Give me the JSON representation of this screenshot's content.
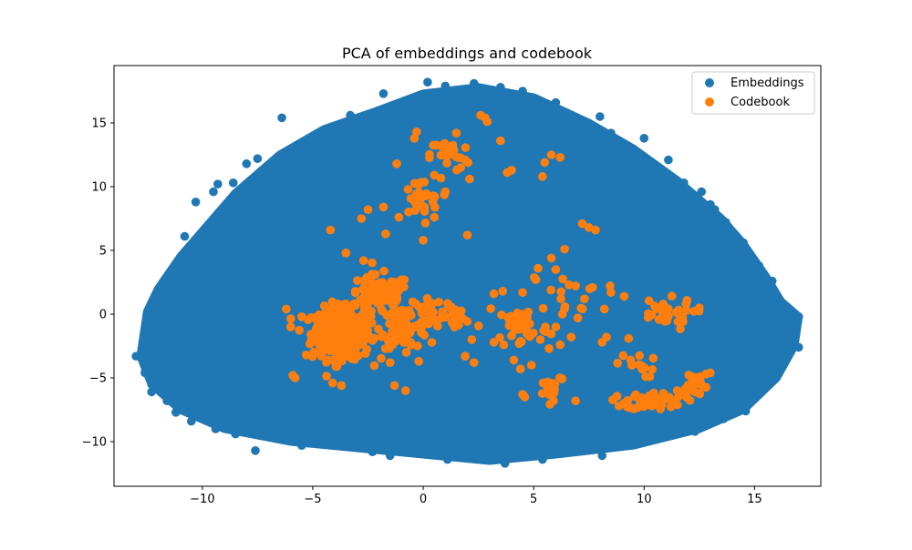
{
  "chart_data": {
    "type": "scatter",
    "title": "PCA of embeddings and codebook",
    "xlabel": "",
    "ylabel": "",
    "xlim": [
      -14,
      18
    ],
    "ylim": [
      -13.5,
      19.5
    ],
    "xticks": [
      -10,
      -5,
      0,
      5,
      10,
      15
    ],
    "yticks": [
      -10,
      -5,
      0,
      5,
      10,
      15
    ],
    "xtick_labels": [
      "−10",
      "−5",
      "0",
      "5",
      "10",
      "15"
    ],
    "ytick_labels": [
      "−10",
      "−5",
      "0",
      "5",
      "10",
      "15"
    ],
    "grid": false,
    "legend_position": "top-right",
    "series": [
      {
        "name": "Embeddings",
        "color": "#1f77b4",
        "cloud_outline": [
          [
            -12.8,
            -3.3
          ],
          [
            -12.5,
            0.2
          ],
          [
            -12.0,
            2.0
          ],
          [
            -11.0,
            4.5
          ],
          [
            -10.0,
            6.5
          ],
          [
            -8.5,
            9.5
          ],
          [
            -6.5,
            12.5
          ],
          [
            -4.5,
            14.5
          ],
          [
            -2.0,
            16.0
          ],
          [
            0.0,
            17.3
          ],
          [
            2.5,
            17.8
          ],
          [
            5.0,
            17.0
          ],
          [
            7.5,
            15.0
          ],
          [
            9.5,
            13.0
          ],
          [
            11.5,
            10.5
          ],
          [
            13.5,
            7.5
          ],
          [
            14.5,
            5.5
          ],
          [
            15.5,
            3.0
          ],
          [
            16.2,
            1.0
          ],
          [
            17.0,
            -0.2
          ],
          [
            16.8,
            -2.5
          ],
          [
            16.0,
            -5.0
          ],
          [
            14.5,
            -7.5
          ],
          [
            12.5,
            -9.0
          ],
          [
            9.5,
            -10.3
          ],
          [
            6.0,
            -11.0
          ],
          [
            3.0,
            -11.5
          ],
          [
            0.0,
            -11.0
          ],
          [
            -3.0,
            -10.5
          ],
          [
            -6.0,
            -10.0
          ],
          [
            -9.0,
            -9.0
          ],
          [
            -11.0,
            -7.5
          ],
          [
            -12.3,
            -5.5
          ]
        ],
        "outliers": [
          [
            -13.0,
            -3.3
          ],
          [
            -12.6,
            -4.6
          ],
          [
            -12.3,
            -5.5
          ],
          [
            -12.2,
            0.4
          ],
          [
            -12.4,
            0.2
          ],
          [
            -11.6,
            2.4
          ],
          [
            -11.3,
            3.1
          ],
          [
            -11.0,
            4.0
          ],
          [
            -10.8,
            6.1
          ],
          [
            -10.3,
            8.8
          ],
          [
            -9.5,
            9.6
          ],
          [
            -8.6,
            10.3
          ],
          [
            -9.3,
            10.2
          ],
          [
            -8.0,
            11.8
          ],
          [
            -7.5,
            12.2
          ],
          [
            -6.4,
            15.4
          ],
          [
            -5.5,
            13.3
          ],
          [
            -3.3,
            15.6
          ],
          [
            -1.8,
            17.3
          ],
          [
            0.2,
            18.2
          ],
          [
            1.0,
            17.9
          ],
          [
            2.3,
            18.1
          ],
          [
            3.5,
            17.8
          ],
          [
            4.5,
            17.5
          ],
          [
            6.0,
            16.6
          ],
          [
            8.0,
            15.5
          ],
          [
            8.5,
            14.2
          ],
          [
            10.0,
            13.8
          ],
          [
            11.1,
            12.1
          ],
          [
            11.8,
            10.3
          ],
          [
            12.6,
            9.6
          ],
          [
            13.0,
            8.6
          ],
          [
            13.2,
            8.2
          ],
          [
            13.7,
            7.2
          ],
          [
            14.5,
            5.6
          ],
          [
            14.1,
            5.3
          ],
          [
            15.2,
            3.8
          ],
          [
            15.8,
            2.6
          ],
          [
            16.0,
            0.6
          ],
          [
            16.4,
            0.3
          ],
          [
            17.0,
            -0.2
          ],
          [
            17.0,
            -2.6
          ],
          [
            16.6,
            -2.5
          ],
          [
            16.4,
            -2.3
          ],
          [
            16.0,
            -4.0
          ],
          [
            15.6,
            -5.0
          ],
          [
            15.0,
            -6.3
          ],
          [
            14.6,
            -7.6
          ],
          [
            13.6,
            -8.2
          ],
          [
            12.3,
            -9.2
          ],
          [
            10.0,
            -9.7
          ],
          [
            8.1,
            -11.1
          ],
          [
            6.0,
            -10.1
          ],
          [
            5.4,
            -11.4
          ],
          [
            4.7,
            -10.7
          ],
          [
            3.7,
            -11.7
          ],
          [
            2.0,
            -11.0
          ],
          [
            1.1,
            -11.4
          ],
          [
            0.2,
            -10.7
          ],
          [
            -1.5,
            -11.1
          ],
          [
            -2.3,
            -10.8
          ],
          [
            -4.5,
            -10.2
          ],
          [
            -5.5,
            -10.3
          ],
          [
            -7.6,
            -10.7
          ],
          [
            -8.5,
            -9.4
          ],
          [
            -9.4,
            -9.0
          ],
          [
            -10.5,
            -8.4
          ],
          [
            -11.2,
            -7.7
          ],
          [
            -11.6,
            -6.8
          ],
          [
            -12.3,
            -6.1
          ]
        ]
      },
      {
        "name": "Codebook",
        "color": "#ff7f0e",
        "clusters": [
          {
            "center": [
              -3.7,
              -1.5
            ],
            "spread": [
              1.2,
              1.8
            ],
            "count": 360
          },
          {
            "center": [
              -2.0,
              1.5
            ],
            "spread": [
              1.3,
              1.4
            ],
            "count": 90
          },
          {
            "center": [
              -0.8,
              -1.0
            ],
            "spread": [
              1.0,
              1.5
            ],
            "count": 70
          },
          {
            "center": [
              0.8,
              0.0
            ],
            "spread": [
              1.3,
              1.0
            ],
            "count": 40
          },
          {
            "center": [
              -0.2,
              9.0
            ],
            "spread": [
              0.9,
              1.5
            ],
            "count": 28
          },
          {
            "center": [
              1.2,
              12.5
            ],
            "spread": [
              0.8,
              1.2
            ],
            "count": 26
          },
          {
            "center": [
              4.5,
              -1.0
            ],
            "spread": [
              1.1,
              1.6
            ],
            "count": 40
          },
          {
            "center": [
              5.8,
              -5.5
            ],
            "spread": [
              0.6,
              1.0
            ],
            "count": 14
          },
          {
            "center": [
              10.5,
              -6.8
            ],
            "spread": [
              1.2,
              0.6
            ],
            "count": 55
          },
          {
            "center": [
              12.2,
              -5.5
            ],
            "spread": [
              0.6,
              1.0
            ],
            "count": 22
          },
          {
            "center": [
              10.8,
              0.0
            ],
            "spread": [
              1.3,
              1.1
            ],
            "count": 30
          },
          {
            "center": [
              9.6,
              -4.0
            ],
            "spread": [
              0.8,
              0.9
            ],
            "count": 14
          },
          {
            "center": [
              6.5,
              1.5
            ],
            "spread": [
              1.6,
              1.3
            ],
            "count": 14
          }
        ],
        "points": [
          [
            2.6,
            15.6
          ],
          [
            2.8,
            15.4
          ],
          [
            2.9,
            15.1
          ],
          [
            3.5,
            13.6
          ],
          [
            1.5,
            14.2
          ],
          [
            -0.3,
            14.3
          ],
          [
            -0.4,
            13.8
          ],
          [
            0.8,
            13.2
          ],
          [
            5.8,
            12.5
          ],
          [
            6.2,
            12.3
          ],
          [
            5.5,
            11.9
          ],
          [
            4.0,
            11.3
          ],
          [
            3.8,
            11.1
          ],
          [
            1.9,
            12.1
          ],
          [
            1.7,
            11.5
          ],
          [
            2.1,
            10.6
          ],
          [
            5.4,
            10.8
          ],
          [
            -1.2,
            11.8
          ],
          [
            0.5,
            10.9
          ],
          [
            1.0,
            9.6
          ],
          [
            -1.8,
            8.4
          ],
          [
            -2.5,
            8.2
          ],
          [
            -2.8,
            7.5
          ],
          [
            -1.1,
            7.6
          ],
          [
            0.5,
            7.6
          ],
          [
            -4.2,
            6.6
          ],
          [
            -1.7,
            6.3
          ],
          [
            0.0,
            5.8
          ],
          [
            7.2,
            7.1
          ],
          [
            7.5,
            6.8
          ],
          [
            7.8,
            6.6
          ],
          [
            6.4,
            5.1
          ],
          [
            5.8,
            4.4
          ],
          [
            2.0,
            6.2
          ],
          [
            -3.5,
            4.8
          ],
          [
            -2.7,
            4.2
          ],
          [
            5.2,
            3.6
          ],
          [
            6.0,
            3.5
          ],
          [
            5.1,
            2.7
          ],
          [
            6.6,
            2.3
          ],
          [
            3.6,
            1.8
          ],
          [
            3.2,
            1.6
          ],
          [
            4.5,
            1.7
          ],
          [
            8.5,
            1.7
          ],
          [
            7.3,
            1.2
          ],
          [
            8.2,
            0.4
          ],
          [
            9.1,
            1.4
          ],
          [
            11.9,
            0.8
          ],
          [
            12.5,
            0.5
          ],
          [
            4.5,
            0.0
          ],
          [
            6.3,
            0.0
          ],
          [
            7.0,
            -0.3
          ],
          [
            2.2,
            -2.0
          ],
          [
            1.9,
            -3.3
          ],
          [
            2.3,
            -3.8
          ],
          [
            3.2,
            -2.2
          ],
          [
            6.0,
            -1.0
          ],
          [
            6.2,
            -2.4
          ],
          [
            6.7,
            -1.8
          ],
          [
            5.3,
            -2.0
          ],
          [
            5.7,
            -2.7
          ],
          [
            8.1,
            -2.2
          ],
          [
            8.3,
            -1.8
          ],
          [
            9.3,
            -1.9
          ],
          [
            6.9,
            -6.8
          ],
          [
            4.5,
            -6.3
          ],
          [
            4.6,
            -6.5
          ],
          [
            5.7,
            -6.3
          ],
          [
            5.9,
            -6.8
          ],
          [
            4.1,
            -3.6
          ],
          [
            4.4,
            -4.3
          ],
          [
            4.9,
            -4.0
          ],
          [
            13.0,
            -4.6
          ],
          [
            12.8,
            -4.7
          ],
          [
            11.5,
            -6.0
          ],
          [
            -5.8,
            -5.0
          ],
          [
            -4.1,
            -5.4
          ],
          [
            -3.7,
            -5.6
          ],
          [
            -1.3,
            -5.6
          ],
          [
            -0.8,
            -6.0
          ],
          [
            -1.5,
            -3.8
          ],
          [
            -0.2,
            -3.7
          ],
          [
            -5.9,
            -4.8
          ],
          [
            -5.3,
            -3.2
          ],
          [
            -6.0,
            -1.0
          ],
          [
            -5.5,
            -0.2
          ],
          [
            -6.2,
            0.4
          ]
        ]
      }
    ]
  }
}
